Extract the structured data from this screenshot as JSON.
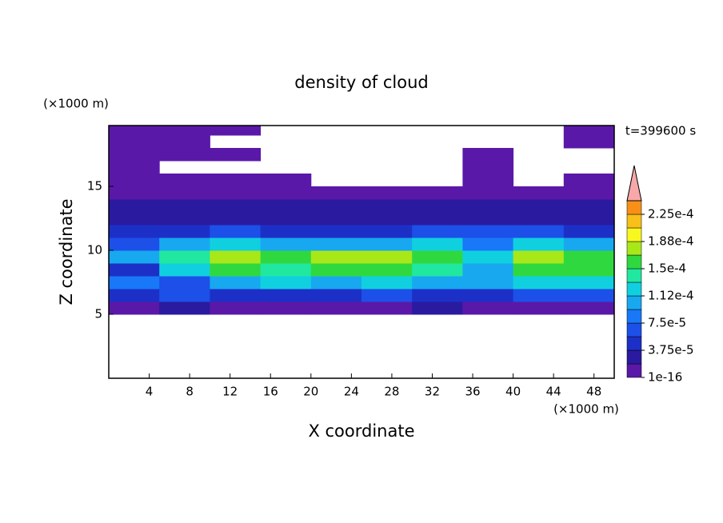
{
  "chart_data": {
    "type": "contour",
    "title": "density of cloud",
    "xlabel": "X coordinate",
    "ylabel": "Z coordinate",
    "x_unit": "(×1000 m)",
    "y_unit": "(×1000 m)",
    "time_label": "t=399600 s",
    "xlim": [
      0,
      50
    ],
    "ylim": [
      0,
      19.75
    ],
    "xticks": [
      4,
      8,
      12,
      16,
      20,
      24,
      28,
      32,
      36,
      40,
      44,
      48
    ],
    "yticks": [
      5,
      10,
      15
    ],
    "x": [
      2.5,
      7.5,
      12.5,
      17.5,
      22.5,
      27.5,
      32.5,
      37.5,
      42.5,
      47.5
    ],
    "z": [
      0.5,
      1.5,
      2.5,
      3.5,
      4.5,
      5.5,
      6.5,
      7.5,
      8.5,
      9.5,
      10.5,
      11.5,
      12.5,
      13.5,
      14.5,
      15.5,
      16.5,
      17.5,
      18.5,
      19.5
    ],
    "values": [
      [
        null,
        null,
        null,
        null,
        null,
        null,
        null,
        null,
        null,
        null
      ],
      [
        null,
        null,
        null,
        null,
        null,
        null,
        null,
        null,
        null,
        null
      ],
      [
        null,
        null,
        null,
        null,
        null,
        null,
        null,
        null,
        null,
        null
      ],
      [
        null,
        null,
        null,
        null,
        null,
        null,
        null,
        null,
        null,
        null
      ],
      [
        null,
        null,
        null,
        null,
        null,
        null,
        null,
        null,
        null,
        null
      ],
      [
        1.5e-05,
        2e-05,
        1.5e-05,
        1.5e-05,
        1.5e-05,
        1.5e-05,
        2e-05,
        1.5e-05,
        1.5e-05,
        1.5e-05
      ],
      [
        5e-05,
        6e-05,
        5e-05,
        5e-05,
        5e-05,
        6e-05,
        5e-05,
        5e-05,
        6e-05,
        6e-05
      ],
      [
        8e-05,
        7e-05,
        0.00011,
        0.00012,
        0.00011,
        0.00012,
        0.00011,
        0.0001,
        0.00012,
        0.00012
      ],
      [
        5e-05,
        0.00012,
        0.00015,
        0.00014,
        0.00015,
        0.00015,
        0.00014,
        0.00011,
        0.00015,
        0.00015
      ],
      [
        0.0001,
        0.00014,
        0.00017,
        0.00015,
        0.00017,
        0.00017,
        0.00015,
        0.00012,
        0.00017,
        0.00015
      ],
      [
        7e-05,
        0.0001,
        0.00013,
        0.00011,
        0.0001,
        0.00011,
        0.00012,
        9e-05,
        0.00012,
        0.0001
      ],
      [
        5e-05,
        5e-05,
        6e-05,
        5e-05,
        5e-05,
        5e-05,
        7e-05,
        6e-05,
        6e-05,
        5e-05
      ],
      [
        3e-05,
        3e-05,
        3e-05,
        2.5e-05,
        3e-05,
        3e-05,
        3e-05,
        2.5e-05,
        3e-05,
        3e-05
      ],
      [
        2e-05,
        2e-05,
        2e-05,
        2e-05,
        2e-05,
        2e-05,
        2e-05,
        2e-05,
        2e-05,
        2e-05
      ],
      [
        1e-05,
        1e-05,
        1e-05,
        1e-05,
        1e-05,
        1e-05,
        1e-05,
        1e-05,
        1e-05,
        1e-05
      ],
      [
        1e-05,
        1e-05,
        5e-06,
        5e-06,
        null,
        null,
        null,
        5e-06,
        null,
        5e-06
      ],
      [
        5e-06,
        null,
        null,
        null,
        null,
        null,
        null,
        5e-06,
        null,
        null
      ],
      [
        5e-06,
        5e-06,
        5e-06,
        null,
        null,
        null,
        null,
        5e-06,
        null,
        null
      ],
      [
        5e-06,
        5e-06,
        null,
        null,
        null,
        null,
        null,
        null,
        null,
        5e-06
      ],
      [
        5e-06,
        5e-06,
        5e-06,
        null,
        null,
        null,
        null,
        null,
        null,
        5e-06
      ]
    ],
    "levels": [
      1e-16,
      1.875e-05,
      3.75e-05,
      5.625e-05,
      7.5e-05,
      9.375e-05,
      0.0001125,
      0.00013125,
      0.00015,
      0.00016875,
      0.0001875,
      0.00020625,
      0.000225,
      0.00024375
    ],
    "colors": [
      "#5a18a8",
      "#2a1aa0",
      "#1c30c8",
      "#1c50e8",
      "#1878f8",
      "#18a8f0",
      "#10d0e0",
      "#20e8a0",
      "#30d840",
      "#a8e818",
      "#f8f820",
      "#f8c018",
      "#f89018",
      "#f05020",
      "#e82020"
    ],
    "extend_color": "#f8a8a8",
    "colorbar_ticks": [
      {
        "value": 1e-16,
        "label": "1e-16"
      },
      {
        "value": 3.75e-05,
        "label": "3.75e-5"
      },
      {
        "value": 7.5e-05,
        "label": "7.5e-5"
      },
      {
        "value": 0.0001125,
        "label": "1.12e-4"
      },
      {
        "value": 0.00015,
        "label": "1.5e-4"
      },
      {
        "value": 0.0001875,
        "label": "1.88e-4"
      },
      {
        "value": 0.000225,
        "label": "2.25e-4"
      }
    ]
  }
}
